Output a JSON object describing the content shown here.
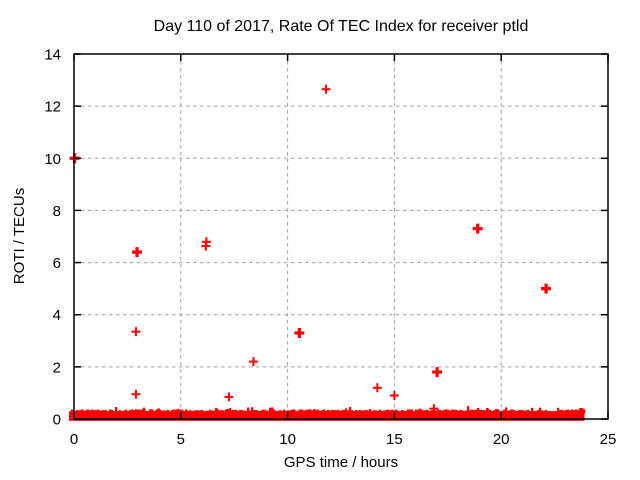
{
  "chart_data": {
    "type": "scatter",
    "title": "Day 110 of 2017, Rate Of TEC Index for receiver ptld",
    "xlabel": "GPS time / hours",
    "ylabel": "ROTI / TECUs",
    "xlim": [
      0,
      25
    ],
    "ylim": [
      0,
      14
    ],
    "xticks": [
      0,
      5,
      10,
      15,
      20,
      25
    ],
    "yticks": [
      0,
      2,
      4,
      6,
      8,
      10,
      12,
      14
    ],
    "grid": true,
    "legend": "none",
    "marker": "plus",
    "outlier_points": [
      {
        "x": 0.03,
        "y": 10.0,
        "bold": true
      },
      {
        "x": 2.95,
        "y": 6.4,
        "bold": true
      },
      {
        "x": 2.9,
        "y": 3.35,
        "bold": false
      },
      {
        "x": 2.9,
        "y": 0.95,
        "bold": false
      },
      {
        "x": 6.2,
        "y": 6.8,
        "bold": false
      },
      {
        "x": 6.17,
        "y": 6.63,
        "bold": false
      },
      {
        "x": 7.25,
        "y": 0.85,
        "bold": false
      },
      {
        "x": 8.4,
        "y": 2.2,
        "bold": false
      },
      {
        "x": 10.55,
        "y": 3.3,
        "bold": true
      },
      {
        "x": 11.8,
        "y": 12.65,
        "bold": false
      },
      {
        "x": 14.2,
        "y": 1.2,
        "bold": false
      },
      {
        "x": 15.0,
        "y": 0.9,
        "bold": false
      },
      {
        "x": 16.85,
        "y": 0.4,
        "bold": false
      },
      {
        "x": 17.0,
        "y": 1.8,
        "bold": true
      },
      {
        "x": 18.9,
        "y": 7.3,
        "bold": true
      },
      {
        "x": 22.1,
        "y": 5.0,
        "bold": true
      }
    ],
    "noise_band": {
      "x_start": 0,
      "x_end": 23.9,
      "y_bottom": -0.07,
      "y_top": 0.28,
      "bumps": [
        [
          0.15,
          0.34
        ],
        [
          0.7,
          0.3
        ],
        [
          1.4,
          0.29
        ],
        [
          2.1,
          0.3
        ],
        [
          3.1,
          0.33
        ],
        [
          3.95,
          0.4
        ],
        [
          4.6,
          0.3
        ],
        [
          5.1,
          0.31
        ],
        [
          5.75,
          0.33
        ],
        [
          6.7,
          0.38
        ],
        [
          7.35,
          0.32
        ],
        [
          8.45,
          0.31
        ],
        [
          9.0,
          0.33
        ],
        [
          9.55,
          0.3
        ],
        [
          10.3,
          0.36
        ],
        [
          11.1,
          0.3
        ],
        [
          11.7,
          0.32
        ],
        [
          12.6,
          0.3
        ],
        [
          13.4,
          0.34
        ],
        [
          14.1,
          0.29
        ],
        [
          14.6,
          0.3
        ],
        [
          15.5,
          0.3
        ],
        [
          16.15,
          0.36
        ],
        [
          17.5,
          0.3
        ],
        [
          18.0,
          0.32
        ],
        [
          18.6,
          0.29
        ],
        [
          19.35,
          0.42
        ],
        [
          20.3,
          0.29
        ],
        [
          21.1,
          0.32
        ],
        [
          22.0,
          0.3
        ],
        [
          22.6,
          0.29
        ],
        [
          23.0,
          0.32
        ],
        [
          23.75,
          0.42
        ]
      ]
    },
    "colors": {
      "marker": "#ff0000",
      "grid": "#9e9e9e",
      "axis": "#000000",
      "text": "#000000",
      "background": "#ffffff"
    }
  }
}
